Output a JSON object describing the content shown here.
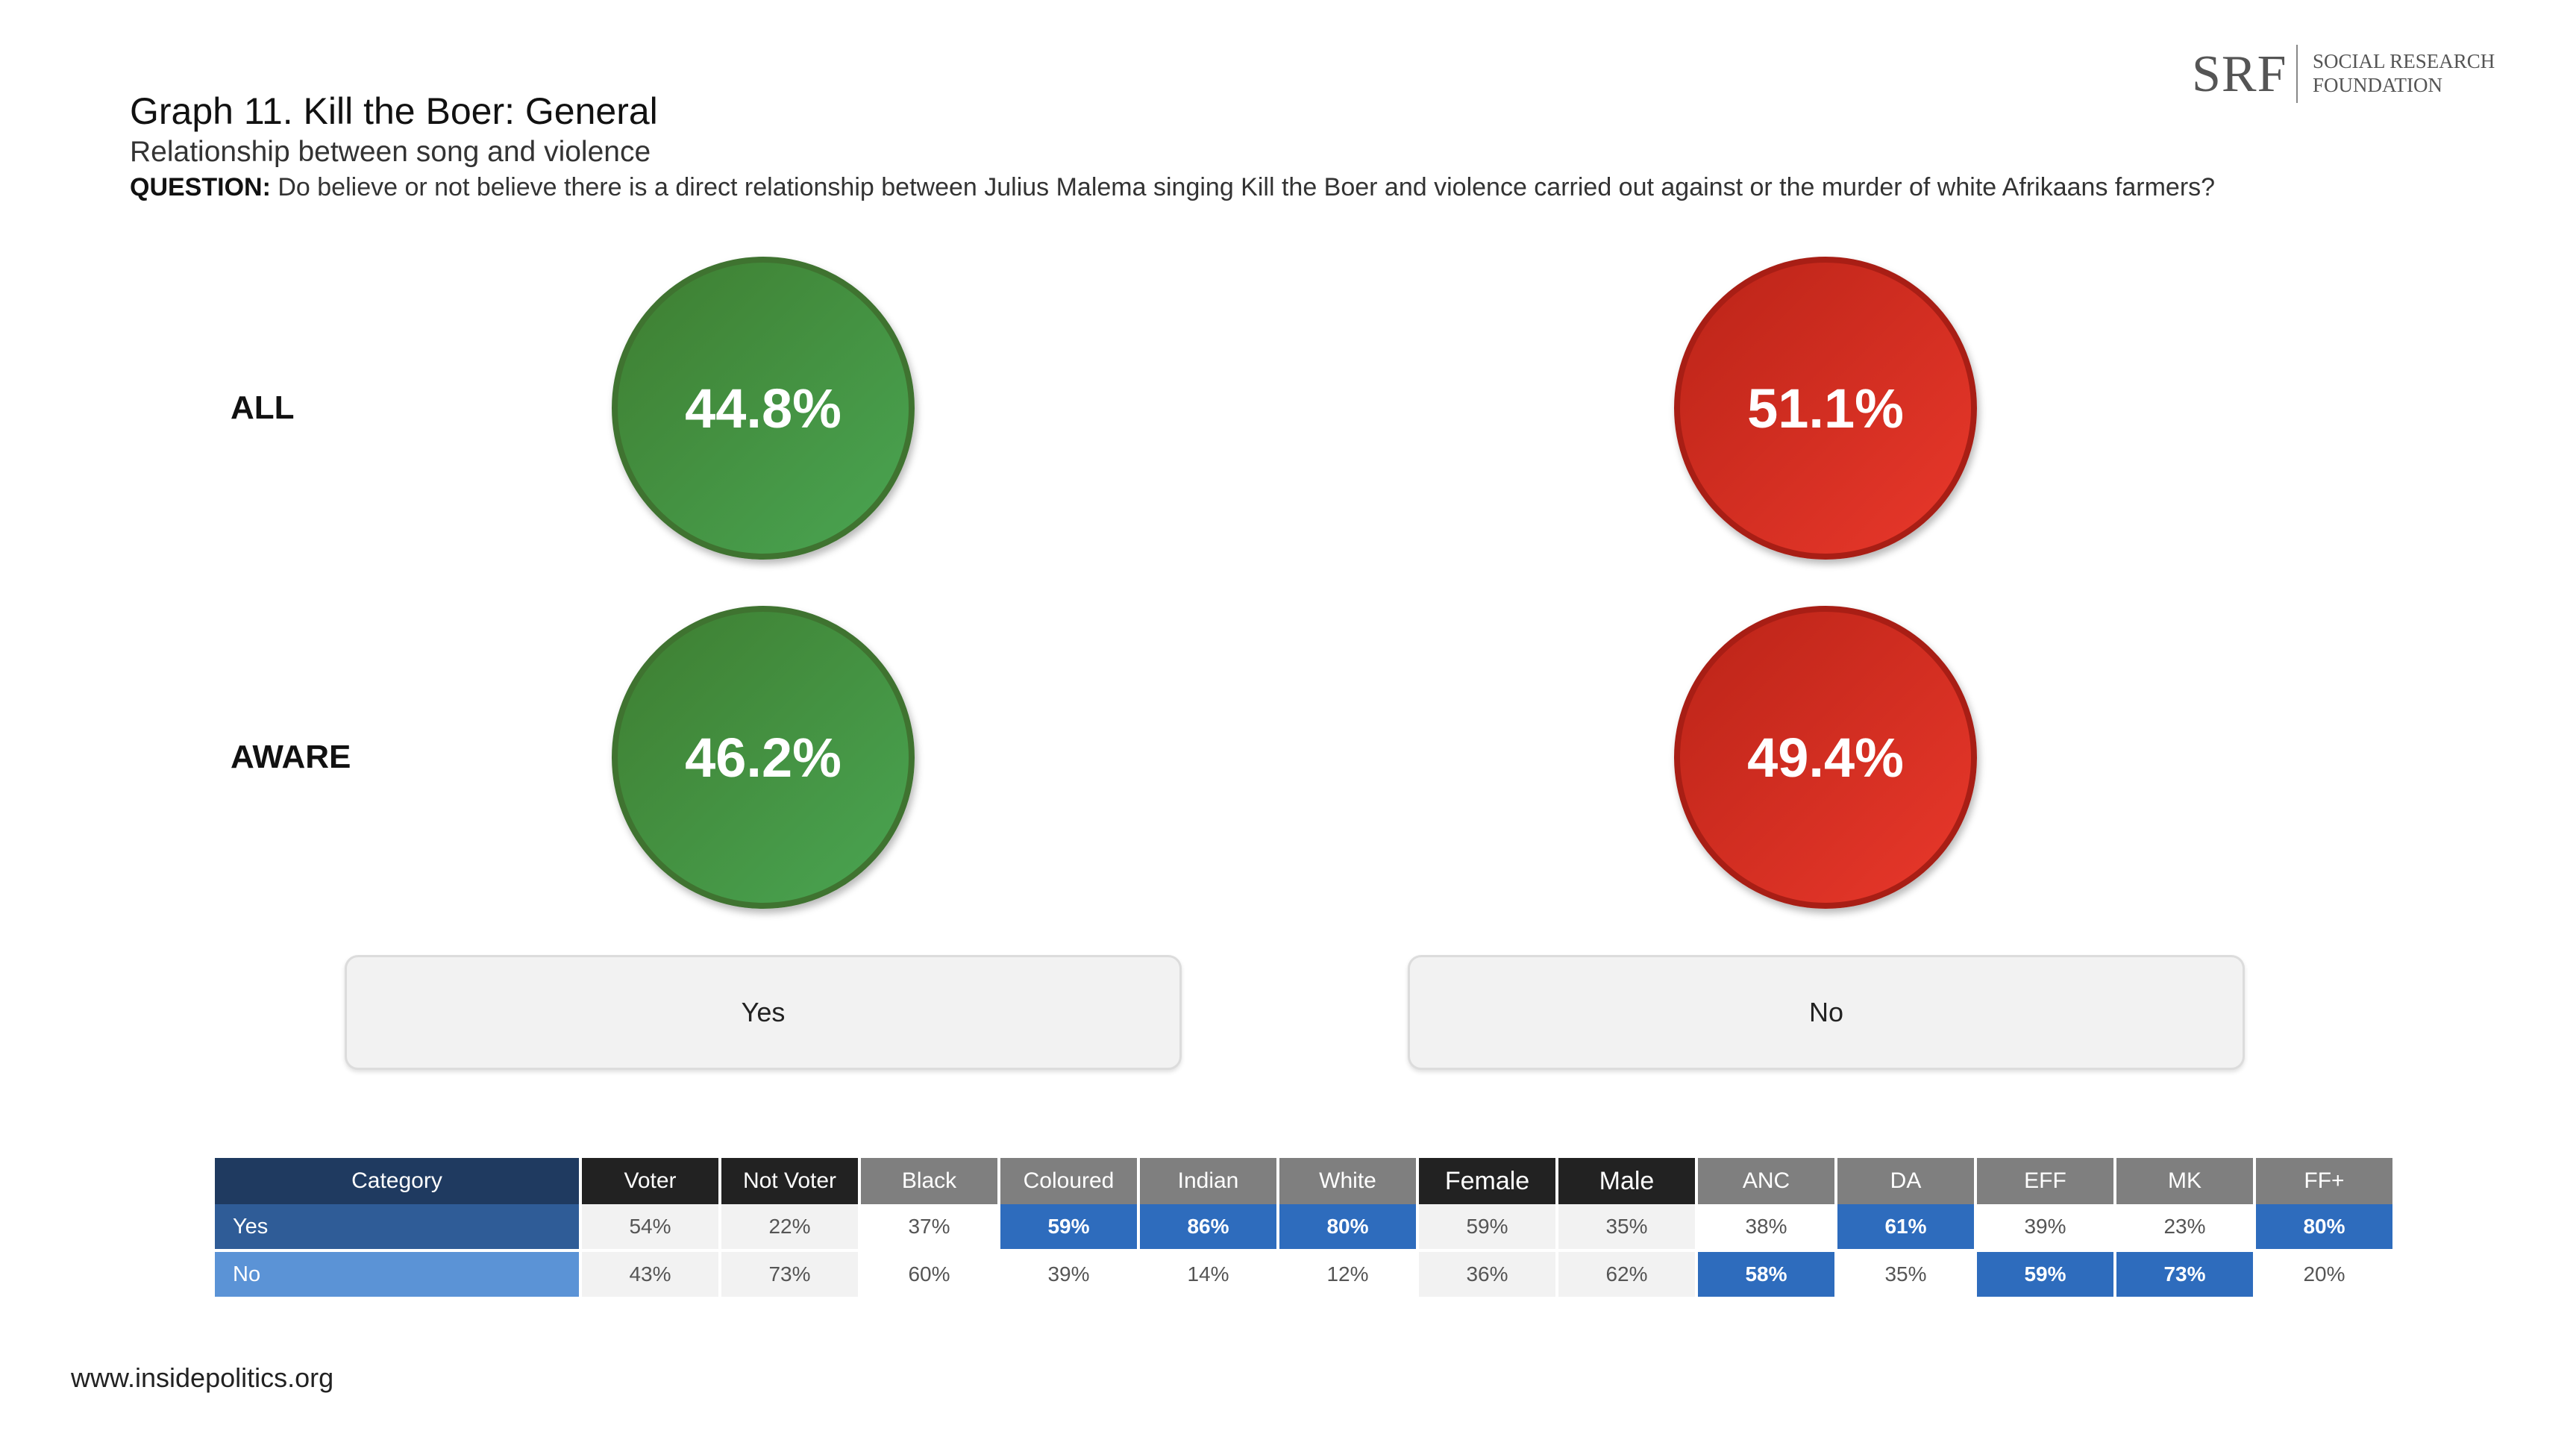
{
  "header": {
    "title": "Graph 11. Kill the Boer: General",
    "subtitle": "Relationship between song and violence",
    "question_label": "QUESTION:",
    "question_text": " Do believe or not believe there is a direct relationship between Julius Malema singing Kill the Boer and violence carried out against or the murder of white Afrikaans farmers?"
  },
  "logo": {
    "abbrev": "SRF",
    "line1": "SOCIAL RESEARCH",
    "line2": "FOUNDATION"
  },
  "colors": {
    "yes_green": "#4aa552",
    "no_red": "#e9382b",
    "header_navy": "#1f3a60",
    "yes_row": "#2f5c97",
    "no_row": "#5b93d6",
    "highlight_blue": "#2e6cbd",
    "header_black": "#222222",
    "header_grey": "#7f7f7f"
  },
  "chart_data": {
    "type": "bubble",
    "rows": [
      "ALL",
      "AWARE"
    ],
    "categories": [
      "Yes",
      "No"
    ],
    "series": [
      {
        "name": "ALL",
        "values": [
          44.8,
          51.1
        ],
        "labels": [
          "44.8%",
          "51.1%"
        ]
      },
      {
        "name": "AWARE",
        "values": [
          46.2,
          49.4
        ],
        "labels": [
          "46.2%",
          "49.4%"
        ]
      }
    ]
  },
  "crosstab": {
    "header_label": "Category",
    "columns": [
      {
        "label": "Voter",
        "group": "black"
      },
      {
        "label": "Not Voter",
        "group": "black"
      },
      {
        "label": "Black",
        "group": "grey"
      },
      {
        "label": "Coloured",
        "group": "grey"
      },
      {
        "label": "Indian",
        "group": "grey"
      },
      {
        "label": "White",
        "group": "grey"
      },
      {
        "label": "Female",
        "group": "black"
      },
      {
        "label": "Male",
        "group": "black"
      },
      {
        "label": "ANC",
        "group": "grey"
      },
      {
        "label": "DA",
        "group": "grey"
      },
      {
        "label": "EFF",
        "group": "grey"
      },
      {
        "label": "MK",
        "group": "grey"
      },
      {
        "label": "FF+",
        "group": "grey"
      }
    ],
    "rows": [
      {
        "label": "Yes",
        "values": [
          "54%",
          "22%",
          "37%",
          "59%",
          "86%",
          "80%",
          "59%",
          "35%",
          "38%",
          "61%",
          "39%",
          "23%",
          "80%"
        ],
        "highlight": [
          false,
          false,
          false,
          true,
          true,
          true,
          false,
          false,
          false,
          true,
          false,
          false,
          true
        ]
      },
      {
        "label": "No",
        "values": [
          "43%",
          "73%",
          "60%",
          "39%",
          "14%",
          "12%",
          "36%",
          "62%",
          "58%",
          "35%",
          "59%",
          "73%",
          "20%"
        ],
        "highlight": [
          false,
          false,
          false,
          false,
          false,
          false,
          false,
          false,
          true,
          false,
          true,
          true,
          false
        ]
      }
    ]
  },
  "footer": {
    "url": "www.insidepolitics.org"
  }
}
